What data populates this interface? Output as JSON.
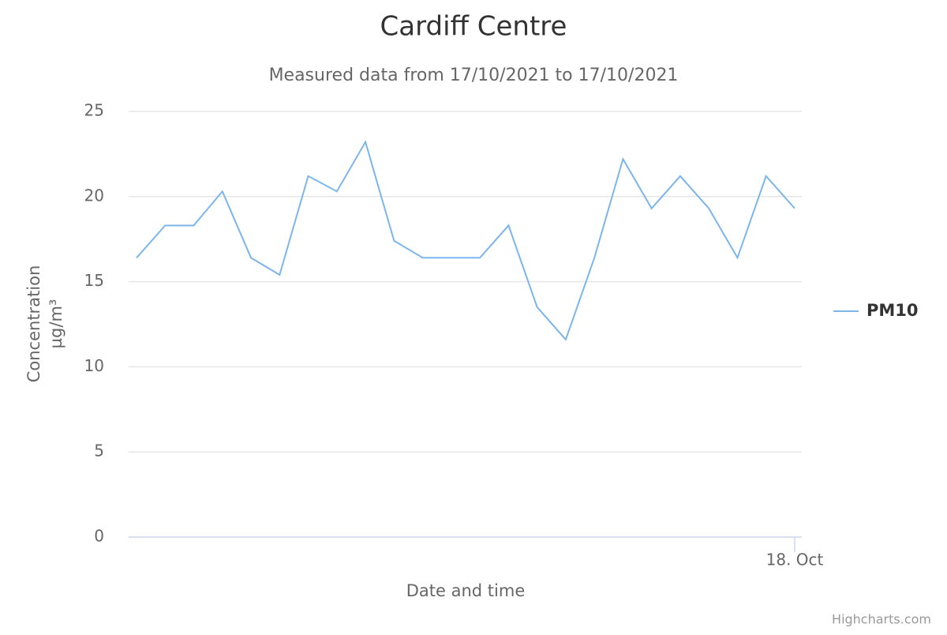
{
  "chart_data": {
    "type": "line",
    "title": "Cardiff Centre",
    "subtitle": "Measured data from 17/10/2021 to 17/10/2021",
    "xlabel": "Date and time",
    "ylabel": [
      "Concentration",
      "µg/m³"
    ],
    "categories": [
      null,
      null,
      null,
      null,
      null,
      null,
      null,
      null,
      null,
      null,
      null,
      null,
      null,
      null,
      null,
      null,
      null,
      null,
      null,
      null,
      null,
      null,
      null,
      "18. Oct"
    ],
    "series": [
      {
        "name": "PM10",
        "color": "#7cb5ec",
        "values": [
          16.4,
          18.3,
          18.3,
          20.3,
          16.4,
          15.4,
          21.2,
          20.3,
          23.2,
          17.4,
          16.4,
          16.4,
          16.4,
          18.3,
          13.5,
          11.6,
          16.4,
          22.2,
          19.3,
          21.2,
          19.3,
          16.4,
          21.2,
          19.3
        ]
      }
    ],
    "ylim": [
      0,
      25
    ],
    "yticks": [
      0,
      5,
      10,
      15,
      20,
      25
    ],
    "grid": true,
    "legend": "right",
    "credits": "Highcharts.com"
  }
}
